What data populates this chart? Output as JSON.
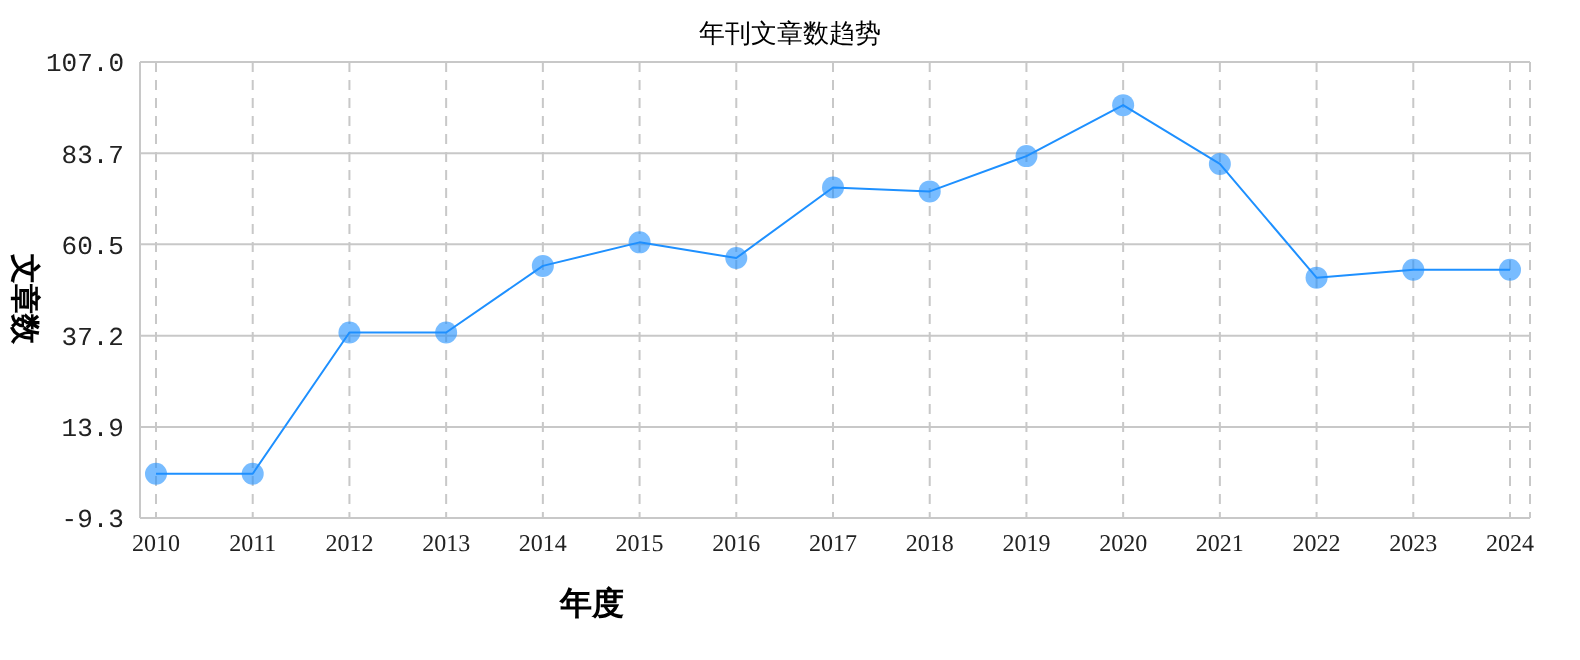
{
  "chart_data": {
    "type": "line",
    "title": "年刊文章数趋势",
    "xlabel": "年度",
    "ylabel": "文章数",
    "categories": [
      "2010",
      "2011",
      "2012",
      "2013",
      "2014",
      "2015",
      "2016",
      "2017",
      "2018",
      "2019",
      "2020",
      "2021",
      "2022",
      "2023",
      "2024"
    ],
    "series": [
      {
        "color": "#1e90ff",
        "values": [
          2,
          2,
          38,
          38,
          55,
          61,
          57,
          75,
          74,
          83,
          96,
          81,
          52,
          54,
          54
        ]
      }
    ],
    "ylim": [
      -9.3,
      107
    ],
    "yticks": [
      -9.3,
      {
        "value": 13.9,
        "label": "13.9"
      },
      {
        "value": 37.2,
        "label": "37.2"
      },
      {
        "value": 60.5,
        "label": "60.5"
      },
      {
        "value": 83.7,
        "label": "83.7"
      },
      {
        "value": 107,
        "label": "107.0"
      }
    ],
    "grid": true,
    "marker": "circle",
    "line_style": "solid",
    "legend": false
  }
}
